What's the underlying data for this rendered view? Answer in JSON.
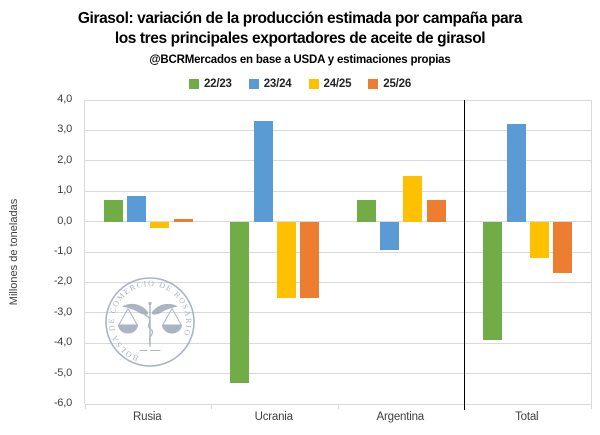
{
  "header": {
    "title_line1": "Girasol: variación de la producción estimada por campaña para",
    "title_line2": "los tres principales exportadores de aceite de girasol",
    "subtitle": "@BCRMercados en base a USDA y estimaciones propias"
  },
  "chart_data": {
    "type": "bar",
    "title": "Girasol: variación de la producción estimada por campaña para los tres principales exportadores de aceite de girasol",
    "subtitle": "@BCRMercados en base a USDA y estimaciones propias",
    "categories": [
      "Rusia",
      "Ucrania",
      "Argentina",
      "Total"
    ],
    "series": [
      {
        "name": "22/23",
        "color": "#70AD47",
        "values": [
          0.7,
          -5.3,
          0.7,
          -3.9
        ]
      },
      {
        "name": "23/24",
        "color": "#5B9BD5",
        "values": [
          0.85,
          3.3,
          -0.95,
          3.2
        ]
      },
      {
        "name": "24/25",
        "color": "#FFC000",
        "values": [
          -0.2,
          -2.5,
          1.5,
          -1.2
        ]
      },
      {
        "name": "25/26",
        "color": "#ED7D31",
        "values": [
          0.1,
          -2.5,
          0.7,
          -1.7
        ]
      }
    ],
    "ylabel": "Millones de toneladas",
    "xlabel": "",
    "ylim": [
      -6,
      4
    ],
    "ytick_step": 1,
    "ytick_labels": [
      "4,0",
      "3,0",
      "2,0",
      "1,0",
      "0,0",
      "-1,0",
      "-2,0",
      "-3,0",
      "-4,0",
      "-5,0",
      "-6,0"
    ],
    "grid": true,
    "legend_position": "top",
    "separator_before_category": "Total"
  },
  "watermark": {
    "text": "BOLSA DE COMERCIO DE ROSARIO",
    "color": "#9CA7BC"
  },
  "colors": {
    "background": "#FFFFFF",
    "title_text": "#000000",
    "axis_text": "#404040",
    "grid": "#D9D9D9",
    "separator": "#000000"
  }
}
